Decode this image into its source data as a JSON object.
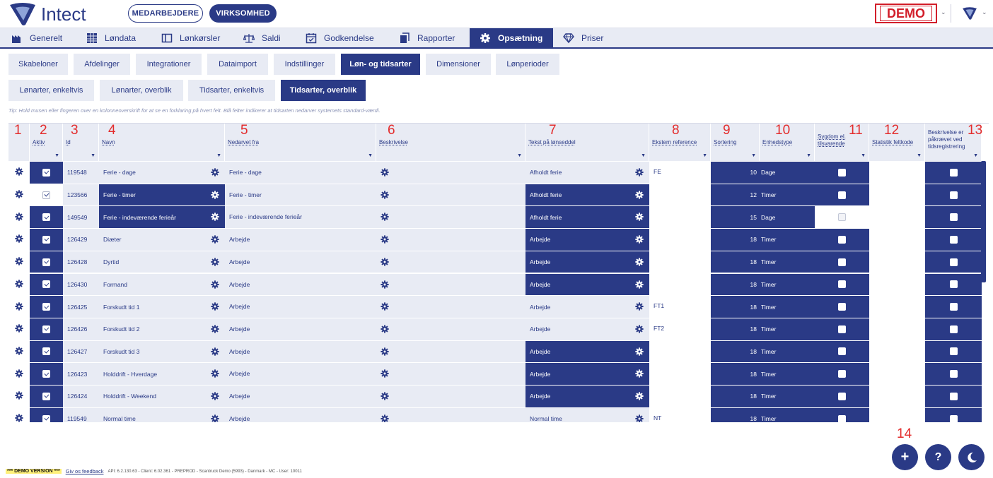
{
  "header": {
    "brand": "Intect",
    "employees_label": "MEDARBEJDERE",
    "company_label": "VIRKSOMHED",
    "demo_label": "DEMO"
  },
  "nav": [
    {
      "label": "Generelt",
      "icon": "factory-icon"
    },
    {
      "label": "Løndata",
      "icon": "grid-icon"
    },
    {
      "label": "Lønkørsler",
      "icon": "window-icon"
    },
    {
      "label": "Saldi",
      "icon": "scale-icon"
    },
    {
      "label": "Godkendelse",
      "icon": "calendar-check-icon"
    },
    {
      "label": "Rapporter",
      "icon": "copy-icon"
    },
    {
      "label": "Opsætning",
      "icon": "gear-icon",
      "active": true
    },
    {
      "label": "Priser",
      "icon": "diamond-icon"
    }
  ],
  "tabs1": [
    "Skabeloner",
    "Afdelinger",
    "Integrationer",
    "Dataimport",
    "Indstillinger",
    "Løn- og tidsarter",
    "Dimensioner",
    "Lønperioder"
  ],
  "tabs2": [
    "Lønarter, enkeltvis",
    "Lønarter, overblik",
    "Tidsarter, enkeltvis",
    "Tidsarter, overblik"
  ],
  "tip": "Tip: Hold musen eller fingeren over en kolonneoverskrift for at se en forklaring på hvert felt. Blå felter indikerer at tidsarten nedarver systemets standard-værdi.",
  "columns": [
    "Aktiv",
    "Id",
    "Navn",
    "Nedarvet fra",
    "Beskrivelse",
    "Tekst på lønseddel",
    "Ekstern reference",
    "Sortering",
    "Enhedstype",
    "Sygdom el. tilsvarende",
    "Statistik feltkode",
    "Beskrivelse er påkrævet ved tidsregistrering"
  ],
  "numbers": [
    "1",
    "2",
    "3",
    "4",
    "5",
    "6",
    "7",
    "8",
    "9",
    "10",
    "11",
    "12",
    "13",
    "14"
  ],
  "rows": [
    {
      "id": "119548",
      "name": "Ferie - dage",
      "inherited": "Ferie - dage",
      "payslip": "Afholdt ferie",
      "ext": "FE",
      "sort": "10",
      "unit": "Dage",
      "name_dark": false,
      "payslip_dark": false,
      "aktiv_dark": true,
      "sick_white": false
    },
    {
      "id": "123566",
      "name": "Ferie - timer",
      "inherited": "Ferie - timer",
      "payslip": "Afholdt ferie",
      "ext": "",
      "sort": "12",
      "unit": "Timer",
      "name_dark": true,
      "payslip_dark": true,
      "aktiv_dark": false,
      "sick_white": false
    },
    {
      "id": "149549",
      "name": "Ferie - indeværende ferieår",
      "inherited": "Ferie - indeværende ferieår",
      "payslip": "Afholdt ferie",
      "ext": "",
      "sort": "15",
      "unit": "Dage",
      "name_dark": true,
      "payslip_dark": true,
      "aktiv_dark": true,
      "sick_white": true
    },
    {
      "id": "126429",
      "name": "Diæter",
      "inherited": "Arbejde",
      "payslip": "Arbejde",
      "ext": "",
      "sort": "18",
      "unit": "Timer",
      "name_dark": false,
      "payslip_dark": true,
      "aktiv_dark": true,
      "sick_white": false
    },
    {
      "id": "126428",
      "name": "Dyrtid",
      "inherited": "Arbejde",
      "payslip": "Arbejde",
      "ext": "",
      "sort": "18",
      "unit": "Timer",
      "name_dark": false,
      "payslip_dark": true,
      "aktiv_dark": true,
      "sick_white": false
    },
    {
      "id": "126430",
      "name": "Formand",
      "inherited": "Arbejde",
      "payslip": "Arbejde",
      "ext": "",
      "sort": "18",
      "unit": "Timer",
      "name_dark": false,
      "payslip_dark": true,
      "aktiv_dark": true,
      "sick_white": false
    },
    {
      "id": "126425",
      "name": "Forskudt tid 1",
      "inherited": "Arbejde",
      "payslip": "Arbejde",
      "ext": "FT1",
      "sort": "18",
      "unit": "Timer",
      "name_dark": false,
      "payslip_dark": false,
      "aktiv_dark": true,
      "sick_white": false
    },
    {
      "id": "126426",
      "name": "Forskudt tid 2",
      "inherited": "Arbejde",
      "payslip": "Arbejde",
      "ext": "FT2",
      "sort": "18",
      "unit": "Timer",
      "name_dark": false,
      "payslip_dark": false,
      "aktiv_dark": true,
      "sick_white": false
    },
    {
      "id": "126427",
      "name": "Forskudt tid 3",
      "inherited": "Arbejde",
      "payslip": "Arbejde",
      "ext": "",
      "sort": "18",
      "unit": "Timer",
      "name_dark": false,
      "payslip_dark": true,
      "aktiv_dark": true,
      "sick_white": false
    },
    {
      "id": "126423",
      "name": "Holddrift - Hverdage",
      "inherited": "Arbejde",
      "payslip": "Arbejde",
      "ext": "",
      "sort": "18",
      "unit": "Timer",
      "name_dark": false,
      "payslip_dark": true,
      "aktiv_dark": true,
      "sick_white": false
    },
    {
      "id": "126424",
      "name": "Holddrift - Weekend",
      "inherited": "Arbejde",
      "payslip": "Arbejde",
      "ext": "",
      "sort": "18",
      "unit": "Timer",
      "name_dark": false,
      "payslip_dark": true,
      "aktiv_dark": true,
      "sick_white": false
    },
    {
      "id": "119549",
      "name": "Normal time",
      "inherited": "Arbejde",
      "payslip": "Normal time",
      "ext": "NT",
      "sort": "18",
      "unit": "Timer",
      "name_dark": false,
      "payslip_dark": false,
      "aktiv_dark": true,
      "sick_white": false
    }
  ],
  "footer": {
    "demo": "*** DEMO VERSION ***",
    "feedback": "Giv os feedback",
    "info": "API: 6.2.130.63 - Client: 6.02.361 - PREPROD - Scantruck Demo (5993) - Danmark - MC - User: 10011"
  },
  "fab": {
    "add": "+",
    "help": "?"
  },
  "colors": {
    "primary": "#2a3a86",
    "light": "#e8ebf4",
    "demo_red": "#d21f2b",
    "annotation_red": "#e32c2c"
  }
}
